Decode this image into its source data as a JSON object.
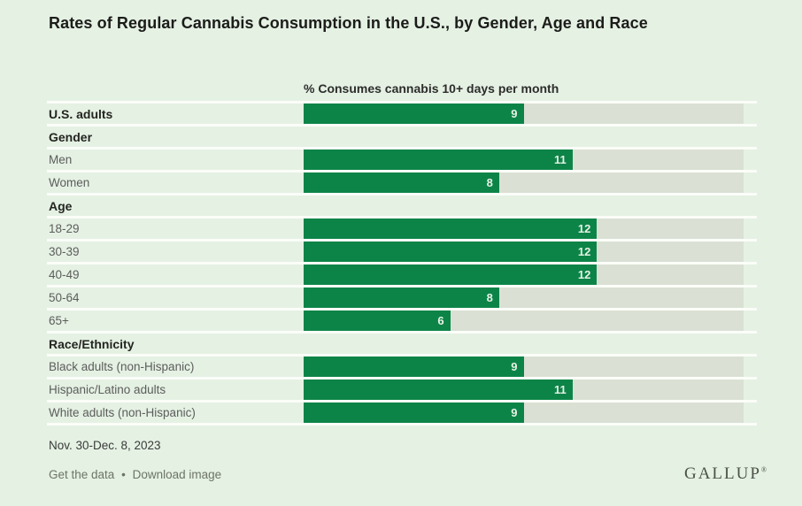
{
  "title": "Rates of Regular Cannabis Consumption in the U.S., by Gender, Age and Race",
  "chart_data": {
    "type": "bar",
    "orientation": "horizontal",
    "title": "% Consumes cannabis 10+ days per month",
    "xlim": [
      0,
      18
    ],
    "bar_color": "#0c8448",
    "track_color": "#dae0d4",
    "value_label_color": "#e6f2e5",
    "rows": [
      {
        "kind": "data",
        "label": "U.S. adults",
        "value": 9,
        "emphasis": true
      },
      {
        "kind": "header",
        "label": "Gender"
      },
      {
        "kind": "data",
        "label": "Men",
        "value": 11
      },
      {
        "kind": "data",
        "label": "Women",
        "value": 8
      },
      {
        "kind": "header",
        "label": "Age"
      },
      {
        "kind": "data",
        "label": "18-29",
        "value": 12
      },
      {
        "kind": "data",
        "label": "30-39",
        "value": 12
      },
      {
        "kind": "data",
        "label": "40-49",
        "value": 12
      },
      {
        "kind": "data",
        "label": "50-64",
        "value": 8
      },
      {
        "kind": "data",
        "label": "65+",
        "value": 6
      },
      {
        "kind": "header",
        "label": "Race/Ethnicity"
      },
      {
        "kind": "data",
        "label": "Black adults (non-Hispanic)",
        "value": 9
      },
      {
        "kind": "data",
        "label": "Hispanic/Latino adults",
        "value": 11
      },
      {
        "kind": "data",
        "label": "White adults (non-Hispanic)",
        "value": 9
      }
    ]
  },
  "footnote_date": "Nov. 30-Dec. 8, 2023",
  "footer": {
    "get_data_label": "Get the data",
    "separator": "•",
    "download_label": "Download image",
    "brand": "GALLUP",
    "brand_mark": "®"
  },
  "colors": {
    "background": "#e4f1e3",
    "accent_green": "#0c8448",
    "row_separator": "#fbfdf8"
  }
}
